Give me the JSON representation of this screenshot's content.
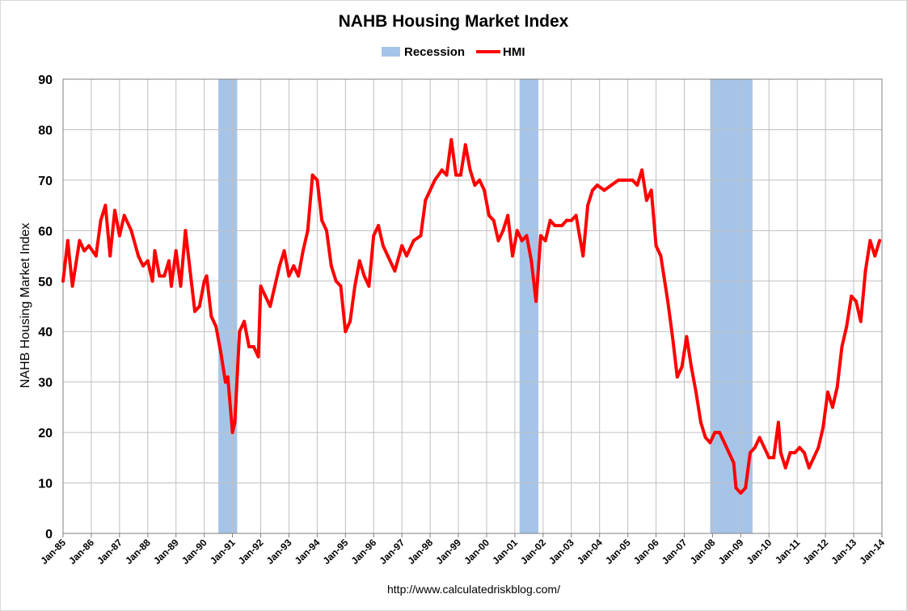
{
  "chart_data": {
    "type": "line",
    "title": "NAHB Housing Market Index",
    "ylabel": "NAHB Housing Market Index",
    "xlabel": "",
    "source": "http://www.calculatedriskblog.com/",
    "ylim": [
      0,
      90
    ],
    "yticks": [
      "0",
      "10",
      "20",
      "30",
      "40",
      "50",
      "60",
      "70",
      "80",
      "90"
    ],
    "xlim": [
      "1985-01",
      "2014-01"
    ],
    "xticks": [
      "Jan-85",
      "Jan-86",
      "Jan-87",
      "Jan-88",
      "Jan-89",
      "Jan-90",
      "Jan-91",
      "Jan-92",
      "Jan-93",
      "Jan-94",
      "Jan-95",
      "Jan-96",
      "Jan-97",
      "Jan-98",
      "Jan-99",
      "Jan-00",
      "Jan-01",
      "Jan-02",
      "Jan-03",
      "Jan-04",
      "Jan-05",
      "Jan-06",
      "Jan-07",
      "Jan-08",
      "Jan-09",
      "Jan-10",
      "Jan-11",
      "Jan-12",
      "Jan-13",
      "Jan-14"
    ],
    "grid": true,
    "legend": {
      "position": "top-center",
      "entries": [
        "Recession",
        "HMI"
      ]
    },
    "colors": {
      "hmi": "#ff0000",
      "recession": "#a6c4e8",
      "grid": "#c0c0c0"
    },
    "recessions": [
      {
        "start": "1990-07",
        "end": "1991-03"
      },
      {
        "start": "2001-03",
        "end": "2001-11"
      },
      {
        "start": "2007-12",
        "end": "2009-06"
      }
    ],
    "series": [
      {
        "name": "HMI",
        "points": [
          [
            "1985-01",
            50
          ],
          [
            "1985-03",
            58
          ],
          [
            "1985-05",
            49
          ],
          [
            "1985-08",
            58
          ],
          [
            "1985-10",
            56
          ],
          [
            "1985-12",
            57
          ],
          [
            "1986-03",
            55
          ],
          [
            "1986-05",
            62
          ],
          [
            "1986-07",
            65
          ],
          [
            "1986-09",
            55
          ],
          [
            "1986-11",
            64
          ],
          [
            "1987-01",
            59
          ],
          [
            "1987-03",
            63
          ],
          [
            "1987-06",
            60
          ],
          [
            "1987-09",
            55
          ],
          [
            "1987-11",
            53
          ],
          [
            "1988-01",
            54
          ],
          [
            "1988-03",
            50
          ],
          [
            "1988-04",
            56
          ],
          [
            "1988-06",
            51
          ],
          [
            "1988-08",
            51
          ],
          [
            "1988-10",
            54
          ],
          [
            "1988-11",
            49
          ],
          [
            "1989-01",
            56
          ],
          [
            "1989-03",
            49
          ],
          [
            "1989-05",
            60
          ],
          [
            "1989-07",
            52
          ],
          [
            "1989-09",
            44
          ],
          [
            "1989-11",
            45
          ],
          [
            "1990-01",
            50
          ],
          [
            "1990-02",
            51
          ],
          [
            "1990-04",
            43
          ],
          [
            "1990-06",
            41
          ],
          [
            "1990-08",
            36
          ],
          [
            "1990-10",
            30
          ],
          [
            "1990-11",
            31
          ],
          [
            "1991-01",
            20
          ],
          [
            "1991-02",
            22
          ],
          [
            "1991-04",
            40
          ],
          [
            "1991-06",
            42
          ],
          [
            "1991-08",
            37
          ],
          [
            "1991-10",
            37
          ],
          [
            "1991-12",
            35
          ],
          [
            "1992-01",
            49
          ],
          [
            "1992-03",
            47
          ],
          [
            "1992-05",
            45
          ],
          [
            "1992-07",
            49
          ],
          [
            "1992-09",
            53
          ],
          [
            "1992-11",
            56
          ],
          [
            "1993-01",
            51
          ],
          [
            "1993-03",
            53
          ],
          [
            "1993-05",
            51
          ],
          [
            "1993-07",
            56
          ],
          [
            "1993-09",
            60
          ],
          [
            "1993-11",
            71
          ],
          [
            "1994-01",
            70
          ],
          [
            "1994-03",
            62
          ],
          [
            "1994-05",
            60
          ],
          [
            "1994-07",
            53
          ],
          [
            "1994-09",
            50
          ],
          [
            "1994-11",
            49
          ],
          [
            "1995-01",
            40
          ],
          [
            "1995-03",
            42
          ],
          [
            "1995-05",
            49
          ],
          [
            "1995-07",
            54
          ],
          [
            "1995-09",
            51
          ],
          [
            "1995-11",
            49
          ],
          [
            "1996-01",
            59
          ],
          [
            "1996-03",
            61
          ],
          [
            "1996-05",
            57
          ],
          [
            "1996-07",
            55
          ],
          [
            "1996-10",
            52
          ],
          [
            "1997-01",
            57
          ],
          [
            "1997-03",
            55
          ],
          [
            "1997-06",
            58
          ],
          [
            "1997-09",
            59
          ],
          [
            "1997-11",
            66
          ],
          [
            "1998-01",
            68
          ],
          [
            "1998-03",
            70
          ],
          [
            "1998-06",
            72
          ],
          [
            "1998-08",
            71
          ],
          [
            "1998-10",
            78
          ],
          [
            "1998-12",
            71
          ],
          [
            "1999-02",
            71
          ],
          [
            "1999-04",
            77
          ],
          [
            "1999-06",
            72
          ],
          [
            "1999-08",
            69
          ],
          [
            "1999-10",
            70
          ],
          [
            "1999-12",
            68
          ],
          [
            "2000-02",
            63
          ],
          [
            "2000-04",
            62
          ],
          [
            "2000-06",
            58
          ],
          [
            "2000-08",
            60
          ],
          [
            "2000-10",
            63
          ],
          [
            "2000-12",
            55
          ],
          [
            "2001-02",
            60
          ],
          [
            "2001-04",
            58
          ],
          [
            "2001-06",
            59
          ],
          [
            "2001-08",
            54
          ],
          [
            "2001-10",
            46
          ],
          [
            "2001-12",
            59
          ],
          [
            "2002-02",
            58
          ],
          [
            "2002-04",
            62
          ],
          [
            "2002-06",
            61
          ],
          [
            "2002-09",
            61
          ],
          [
            "2002-11",
            62
          ],
          [
            "2003-01",
            62
          ],
          [
            "2003-03",
            63
          ],
          [
            "2003-06",
            55
          ],
          [
            "2003-08",
            65
          ],
          [
            "2003-10",
            68
          ],
          [
            "2003-12",
            69
          ],
          [
            "2004-03",
            68
          ],
          [
            "2004-06",
            69
          ],
          [
            "2004-09",
            70
          ],
          [
            "2004-12",
            70
          ],
          [
            "2005-03",
            70
          ],
          [
            "2005-05",
            69
          ],
          [
            "2005-07",
            72
          ],
          [
            "2005-09",
            66
          ],
          [
            "2005-11",
            68
          ],
          [
            "2006-01",
            57
          ],
          [
            "2006-03",
            55
          ],
          [
            "2006-06",
            46
          ],
          [
            "2006-08",
            39
          ],
          [
            "2006-10",
            31
          ],
          [
            "2006-12",
            33
          ],
          [
            "2007-02",
            39
          ],
          [
            "2007-04",
            33
          ],
          [
            "2007-06",
            28
          ],
          [
            "2007-08",
            22
          ],
          [
            "2007-10",
            19
          ],
          [
            "2007-12",
            18
          ],
          [
            "2008-02",
            20
          ],
          [
            "2008-04",
            20
          ],
          [
            "2008-06",
            18
          ],
          [
            "2008-08",
            16
          ],
          [
            "2008-10",
            14
          ],
          [
            "2008-11",
            9
          ],
          [
            "2009-01",
            8
          ],
          [
            "2009-03",
            9
          ],
          [
            "2009-05",
            16
          ],
          [
            "2009-07",
            17
          ],
          [
            "2009-09",
            19
          ],
          [
            "2009-11",
            17
          ],
          [
            "2010-01",
            15
          ],
          [
            "2010-03",
            15
          ],
          [
            "2010-05",
            22
          ],
          [
            "2010-06",
            16
          ],
          [
            "2010-08",
            13
          ],
          [
            "2010-10",
            16
          ],
          [
            "2010-12",
            16
          ],
          [
            "2011-02",
            17
          ],
          [
            "2011-04",
            16
          ],
          [
            "2011-06",
            13
          ],
          [
            "2011-08",
            15
          ],
          [
            "2011-10",
            17
          ],
          [
            "2011-12",
            21
          ],
          [
            "2012-02",
            28
          ],
          [
            "2012-04",
            25
          ],
          [
            "2012-06",
            29
          ],
          [
            "2012-08",
            37
          ],
          [
            "2012-10",
            41
          ],
          [
            "2012-12",
            47
          ],
          [
            "2013-02",
            46
          ],
          [
            "2013-04",
            42
          ],
          [
            "2013-06",
            52
          ],
          [
            "2013-08",
            58
          ],
          [
            "2013-10",
            55
          ],
          [
            "2013-12",
            58
          ]
        ]
      }
    ]
  }
}
